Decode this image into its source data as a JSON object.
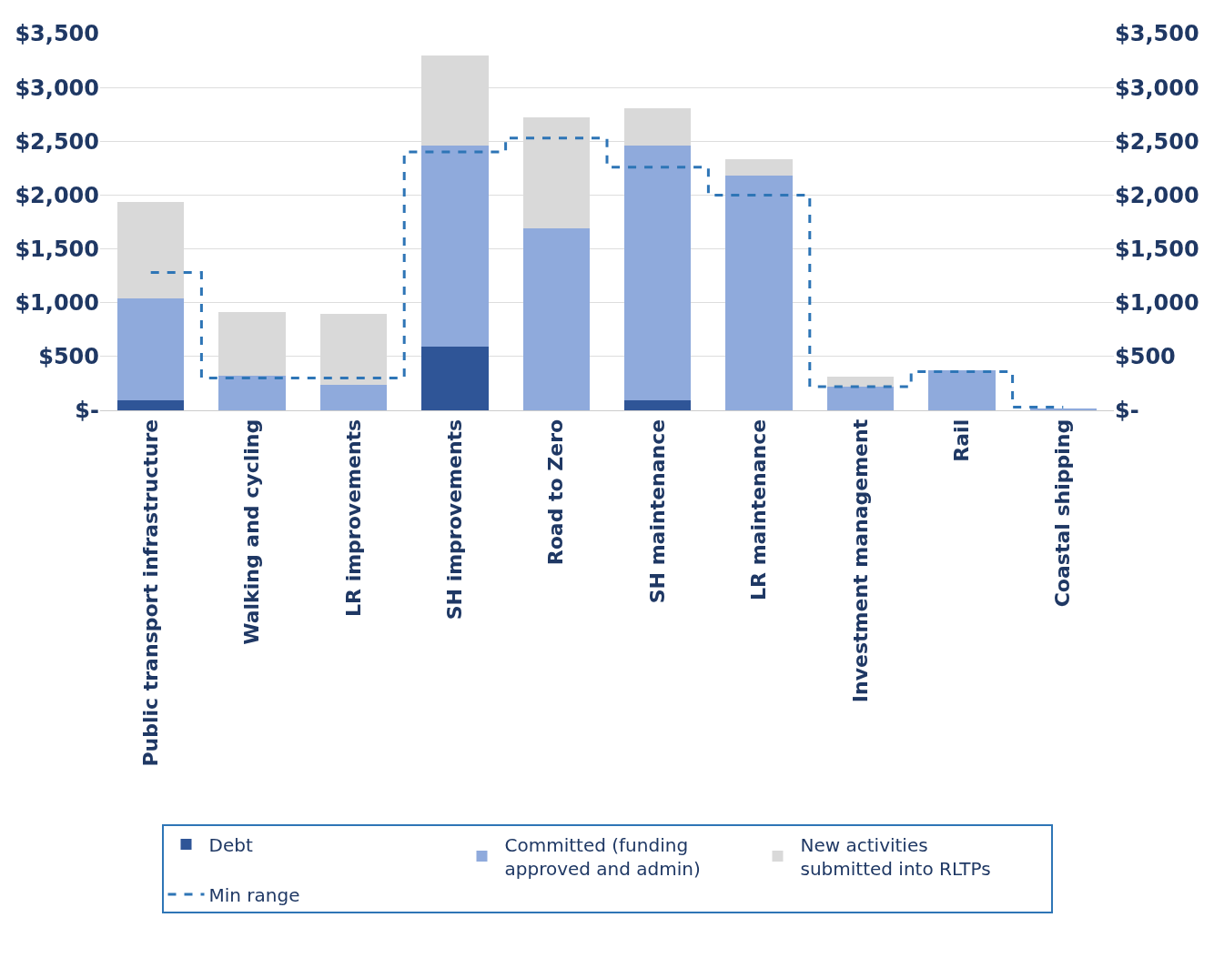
{
  "chart_data": {
    "type": "bar",
    "stacked": true,
    "categories": [
      "Public transport infrastructure",
      "Walking and cycling",
      "LR improvements",
      "SH improvements",
      "Road to Zero",
      "SH maintenance",
      "LR maintenance",
      "Investment management",
      "Rail",
      "Coastal shipping"
    ],
    "series": [
      {
        "name": "Debt",
        "color": "#2f5597",
        "values": [
          90,
          0,
          0,
          590,
          0,
          90,
          0,
          0,
          0,
          0
        ]
      },
      {
        "name": "Committed (funding approved and admin)",
        "color": "#8faadc",
        "values": [
          950,
          320,
          240,
          1870,
          1690,
          2370,
          2180,
          220,
          370,
          20
        ]
      },
      {
        "name": "New activities submitted into RLTPs",
        "color": "#d9d9d9",
        "values": [
          900,
          590,
          660,
          840,
          1030,
          350,
          150,
          90,
          0,
          0
        ]
      },
      {
        "name": "Min range",
        "type": "step",
        "line_style": "dashed",
        "color": "#2e75b6",
        "values": [
          1280,
          300,
          300,
          2400,
          2530,
          2260,
          2000,
          220,
          360,
          30
        ]
      }
    ],
    "ylim": [
      0,
      3500
    ],
    "yticks": [
      {
        "value": 0,
        "label": "$-"
      },
      {
        "value": 500,
        "label": "$500"
      },
      {
        "value": 1000,
        "label": "$1,000"
      },
      {
        "value": 1500,
        "label": "$1,500"
      },
      {
        "value": 2000,
        "label": "$2,000"
      },
      {
        "value": 2500,
        "label": "$2,500"
      },
      {
        "value": 3000,
        "label": "$3,000"
      },
      {
        "value": 3500,
        "label": "$3,500"
      }
    ],
    "y2lim": [
      0,
      3500
    ],
    "y2ticks": [
      {
        "value": 0,
        "label": "$-"
      },
      {
        "value": 500,
        "label": "$500"
      },
      {
        "value": 1000,
        "label": "$1,000"
      },
      {
        "value": 1500,
        "label": "$1,500"
      },
      {
        "value": 2000,
        "label": "$2,000"
      },
      {
        "value": 2500,
        "label": "$2,500"
      },
      {
        "value": 3000,
        "label": "$3,000"
      },
      {
        "value": 3500,
        "label": "$3,500"
      }
    ],
    "grid": "y",
    "legend": "bottom"
  }
}
